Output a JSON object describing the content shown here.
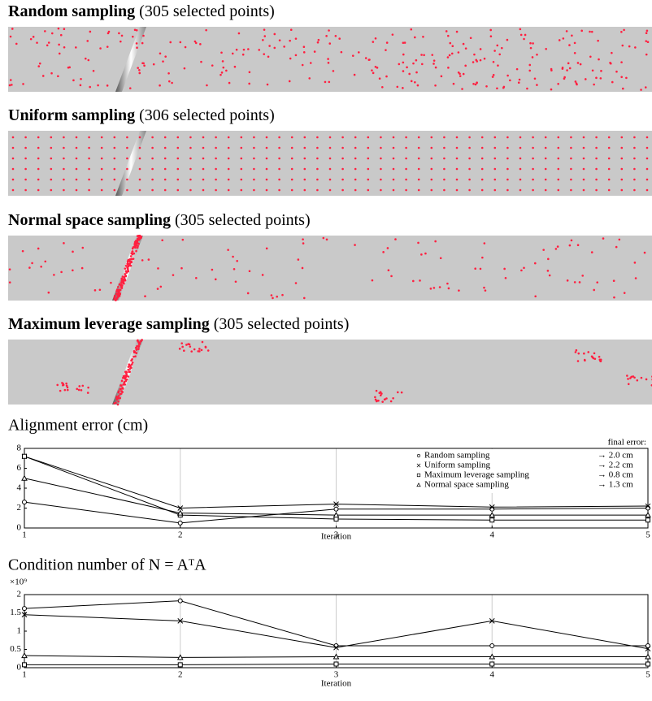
{
  "panels": [
    {
      "method": "Random sampling",
      "detail": "(305 selected points)"
    },
    {
      "method": "Uniform sampling",
      "detail": "(306 selected points)"
    },
    {
      "method": "Normal space sampling",
      "detail": "(305 selected points)"
    },
    {
      "method": "Maximum leverage sampling",
      "detail": "(305 selected points)"
    }
  ],
  "chart_data": [
    {
      "type": "line",
      "title": "Alignment error (cm)",
      "x_label": "Iteration",
      "x": [
        1,
        2,
        3,
        4,
        5
      ],
      "xlim": [
        1,
        5
      ],
      "xticks": [
        1,
        2,
        3,
        4,
        5
      ],
      "ylim": [
        0,
        8
      ],
      "yticks": [
        0,
        2,
        4,
        6,
        8
      ],
      "grid": "x",
      "legend": "top-right",
      "legend_title": "final error:",
      "series": [
        {
          "name": "Random sampling",
          "note": "→ 2.0 cm",
          "marker": "circle",
          "color": "#000000",
          "values": [
            2.6,
            0.5,
            1.9,
            1.9,
            2.0
          ]
        },
        {
          "name": "Uniform sampling",
          "note": "→ 2.2 cm",
          "marker": "cross",
          "color": "#000000",
          "values": [
            7.2,
            2.0,
            2.4,
            2.1,
            2.2
          ]
        },
        {
          "name": "Maximum leverage sampling",
          "note": "→ 0.8 cm",
          "marker": "square",
          "color": "#000000",
          "values": [
            7.2,
            1.3,
            0.9,
            0.8,
            0.8
          ]
        },
        {
          "name": "Normal space sampling",
          "note": "→ 1.3 cm",
          "marker": "triangle",
          "color": "#000000",
          "values": [
            5.0,
            1.5,
            1.3,
            1.3,
            1.3
          ]
        }
      ]
    },
    {
      "type": "line",
      "title": "Condition number of N = AᵀA",
      "x_label": "Iteration",
      "y_multiplier": "×10⁹",
      "x": [
        1,
        2,
        3,
        4,
        5
      ],
      "xlim": [
        1,
        5
      ],
      "xticks": [
        1,
        2,
        3,
        4,
        5
      ],
      "ylim": [
        0,
        2
      ],
      "yticks": [
        0,
        0.5,
        1,
        1.5,
        2
      ],
      "grid": "x",
      "series": [
        {
          "marker": "circle",
          "color": "#000000",
          "values": [
            1.62,
            1.83,
            0.6,
            0.6,
            0.6
          ]
        },
        {
          "marker": "cross",
          "color": "#000000",
          "values": [
            1.45,
            1.28,
            0.55,
            1.28,
            0.52
          ]
        },
        {
          "marker": "square",
          "color": "#000000",
          "values": [
            0.08,
            0.08,
            0.1,
            0.1,
            0.1
          ]
        },
        {
          "marker": "triangle",
          "color": "#000000",
          "values": [
            0.33,
            0.28,
            0.3,
            0.3,
            0.3
          ]
        }
      ]
    }
  ]
}
